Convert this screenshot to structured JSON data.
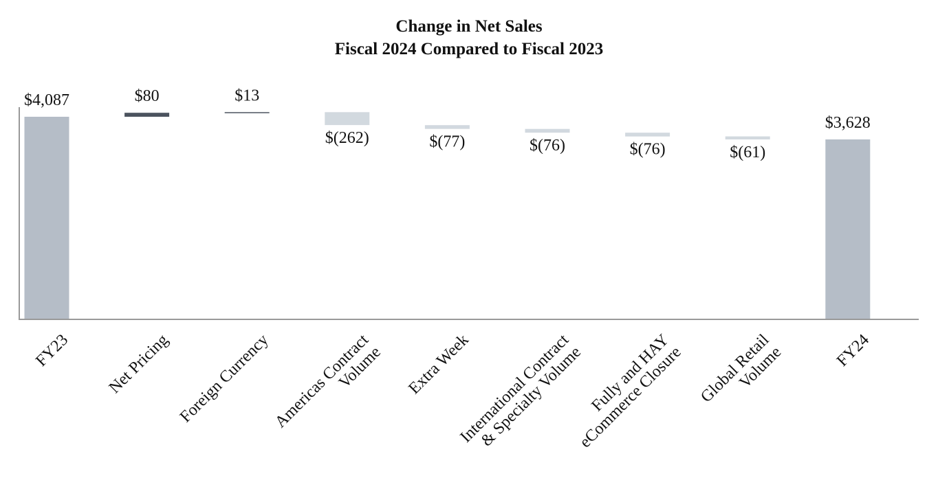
{
  "chart_data": {
    "type": "waterfall",
    "title": [
      "Change in Net Sales",
      "Fiscal 2024 Compared to Fiscal 2023"
    ],
    "categories": [
      [
        "FY23"
      ],
      [
        "Net Pricing"
      ],
      [
        "Foreign Currency"
      ],
      [
        "Americas Contract",
        "Volume"
      ],
      [
        "Extra Week"
      ],
      [
        "International Contract",
        "& Specialty Volume"
      ],
      [
        "Fully and HAY",
        "eCommerce Closure"
      ],
      [
        "Global Retail",
        "Volume"
      ],
      [
        "FY24"
      ]
    ],
    "values": [
      4087,
      80,
      13,
      -262,
      -77,
      -76,
      -76,
      -61,
      3628
    ],
    "kinds": [
      "total",
      "increase",
      "increase",
      "decrease",
      "decrease",
      "decrease",
      "decrease",
      "decrease",
      "total"
    ],
    "value_labels": [
      "$4,087",
      "$80",
      "$13",
      "$(262)",
      "$(77)",
      "$(76)",
      "$(76)",
      "$(61)",
      "$3,628"
    ],
    "colors": {
      "total": "#b5bdc7",
      "increase": "#4b535e",
      "decrease": "#d2d9df",
      "axis": "#999999"
    }
  }
}
